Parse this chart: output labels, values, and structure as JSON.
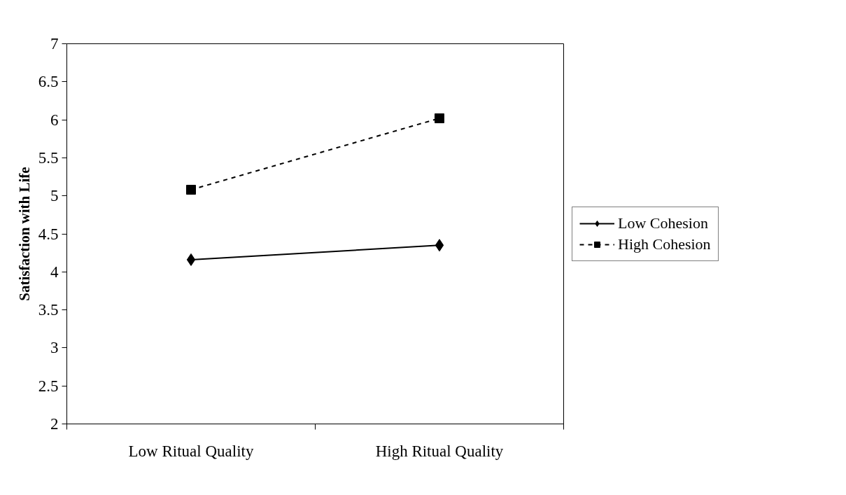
{
  "chart_data": {
    "type": "line",
    "ylabel": "Satisfaction with Life",
    "categories": [
      "Low Ritual Quality",
      "High Ritual Quality"
    ],
    "series": [
      {
        "name": "Low Cohesion",
        "color": "#000000",
        "values": [
          4.16,
          4.35
        ],
        "marker": "diamond",
        "line_style": "solid"
      },
      {
        "name": "High Cohesion",
        "color": "#000000",
        "values": [
          5.08,
          6.02
        ],
        "marker": "square",
        "line_style": "dashed"
      }
    ],
    "ylim": [
      2,
      7
    ],
    "yticks": [
      2,
      2.5,
      3,
      3.5,
      4,
      4.5,
      5,
      5.5,
      6,
      6.5,
      7
    ],
    "grid": false,
    "legend": "right"
  }
}
